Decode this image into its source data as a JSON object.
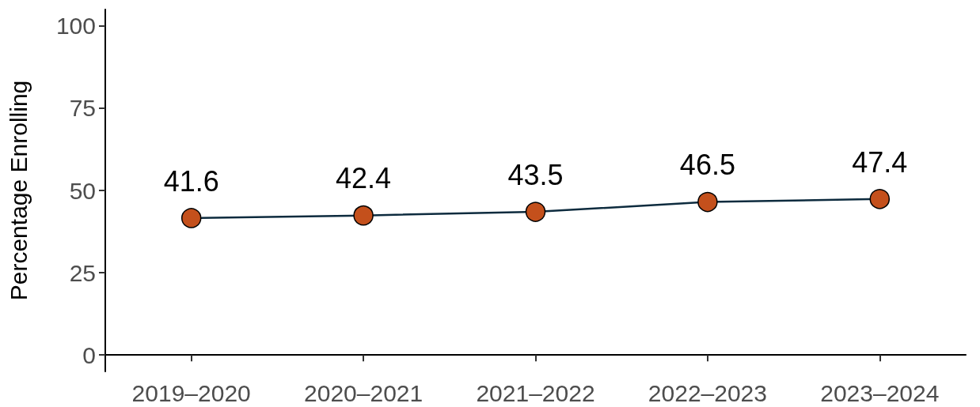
{
  "chart_data": {
    "type": "line",
    "ylabel": "Percentage Enrolling",
    "categories": [
      "2019–2020",
      "2020–2021",
      "2021–2022",
      "2022–2023",
      "2023–2024"
    ],
    "series": [
      {
        "color": "#0d2b3e",
        "colors": [
          "#c4501c",
          "#c4501c",
          "#c4501c",
          "#c4501c",
          "#c4501c"
        ],
        "values": [
          41.6,
          42.4,
          43.5,
          46.5,
          47.4
        ]
      }
    ],
    "ylim": [
      -5,
      105
    ],
    "yticks": [
      0,
      25,
      50,
      75,
      100
    ],
    "grid": false,
    "marker": "circle",
    "line_style": "solid",
    "data_labels": true
  }
}
